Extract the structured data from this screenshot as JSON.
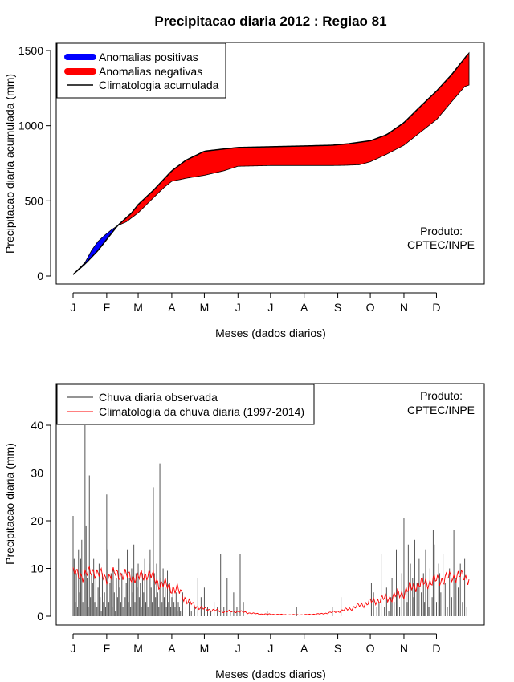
{
  "title": "Precipitacao diaria 2012 : Regiao 81",
  "product_line1": "Produto:",
  "product_line2": "CPTEC/INPE",
  "colors": {
    "positive": "#0000ff",
    "negative": "#ff0000",
    "climatology_accumulated": "#000000",
    "observed_bars": "#555555",
    "climatology_daily": "#ff0000"
  },
  "chart_data": [
    {
      "type": "area",
      "ylabel": "Precipitacao diaria acumulada (mm)",
      "xlabel": "Meses (dados diarios)",
      "xlim": [
        1,
        366
      ],
      "ylim": [
        0,
        1500
      ],
      "ytick_values": [
        0,
        500,
        1000,
        1500
      ],
      "ytick_labels": [
        "0",
        "500",
        "1000",
        "1500"
      ],
      "month_labels": [
        "J",
        "F",
        "M",
        "A",
        "M",
        "J",
        "J",
        "A",
        "S",
        "O",
        "N",
        "D"
      ],
      "month_days": [
        1,
        32,
        61,
        92,
        122,
        153,
        183,
        214,
        245,
        275,
        306,
        336
      ],
      "legend": [
        "Anomalias positivas",
        "Anomalias negativas",
        "Climatologia acumulada"
      ],
      "legend_position": "top-left",
      "series": [
        {
          "name": "Climatologia acumulada",
          "points": [
            [
              1,
              10
            ],
            [
              12,
              80
            ],
            [
              24,
              170
            ],
            [
              36,
              280
            ],
            [
              42,
              335
            ],
            [
              55,
              420
            ],
            [
              61,
              475
            ],
            [
              75,
              570
            ],
            [
              92,
              700
            ],
            [
              105,
              770
            ],
            [
              122,
              830
            ],
            [
              140,
              845
            ],
            [
              153,
              855
            ],
            [
              183,
              860
            ],
            [
              214,
              865
            ],
            [
              240,
              870
            ],
            [
              255,
              880
            ],
            [
              275,
              900
            ],
            [
              290,
              940
            ],
            [
              306,
              1020
            ],
            [
              320,
              1120
            ],
            [
              336,
              1230
            ],
            [
              350,
              1340
            ],
            [
              366,
              1485
            ]
          ]
        },
        {
          "name": "Observada acumulada",
          "points": [
            [
              1,
              10
            ],
            [
              12,
              90
            ],
            [
              18,
              170
            ],
            [
              24,
              230
            ],
            [
              30,
              270
            ],
            [
              36,
              305
            ],
            [
              42,
              335
            ],
            [
              50,
              360
            ],
            [
              61,
              420
            ],
            [
              75,
              520
            ],
            [
              85,
              590
            ],
            [
              92,
              630
            ],
            [
              105,
              650
            ],
            [
              122,
              670
            ],
            [
              140,
              700
            ],
            [
              153,
              730
            ],
            [
              183,
              735
            ],
            [
              214,
              735
            ],
            [
              240,
              735
            ],
            [
              250,
              736
            ],
            [
              265,
              740
            ],
            [
              275,
              760
            ],
            [
              290,
              810
            ],
            [
              306,
              870
            ],
            [
              320,
              950
            ],
            [
              336,
              1040
            ],
            [
              350,
              1160
            ],
            [
              362,
              1260
            ],
            [
              366,
              1270
            ]
          ]
        }
      ]
    },
    {
      "type": "bar",
      "ylabel": "Precipitacao diaria (mm)",
      "xlabel": "Meses (dados diarios)",
      "xlim": [
        1,
        366
      ],
      "ylim": [
        0,
        40
      ],
      "ytick_values": [
        0,
        10,
        20,
        30,
        40
      ],
      "ytick_labels": [
        "0",
        "10",
        "20",
        "30",
        "40"
      ],
      "month_labels": [
        "J",
        "F",
        "M",
        "A",
        "M",
        "J",
        "J",
        "A",
        "S",
        "O",
        "N",
        "D"
      ],
      "month_days": [
        1,
        32,
        61,
        92,
        122,
        153,
        183,
        214,
        245,
        275,
        306,
        336
      ],
      "legend": [
        "Chuva diaria observada",
        "Climatologia da chuva diaria (1997-2014)"
      ],
      "legend_position": "top-left",
      "series": [
        {
          "name": "Chuva diaria observada",
          "x": [
            1,
            2,
            3,
            4,
            5,
            6,
            7,
            8,
            9,
            10,
            11,
            12,
            13,
            14,
            15,
            16,
            17,
            18,
            19,
            20,
            21,
            22,
            23,
            24,
            25,
            26,
            27,
            28,
            29,
            30,
            31,
            32,
            33,
            34,
            35,
            36,
            37,
            38,
            39,
            40,
            41,
            42,
            43,
            44,
            45,
            46,
            47,
            48,
            49,
            50,
            51,
            52,
            53,
            54,
            55,
            56,
            57,
            58,
            59,
            60,
            61,
            62,
            63,
            64,
            65,
            66,
            67,
            68,
            69,
            70,
            71,
            72,
            73,
            74,
            75,
            76,
            77,
            78,
            79,
            80,
            81,
            82,
            83,
            84,
            85,
            86,
            87,
            88,
            89,
            90,
            91,
            92,
            93,
            94,
            95,
            96,
            97,
            98,
            99,
            100,
            102,
            105,
            108,
            110,
            113,
            116,
            119,
            122,
            125,
            128,
            131,
            134,
            137,
            140,
            143,
            146,
            149,
            152,
            155,
            158,
            180,
            207,
            240,
            248,
            276,
            278,
            281,
            283,
            285,
            288,
            290,
            292,
            294,
            295,
            297,
            299,
            300,
            302,
            304,
            306,
            308,
            309,
            310,
            312,
            314,
            315,
            316,
            318,
            319,
            320,
            322,
            324,
            325,
            326,
            328,
            329,
            330,
            332,
            333,
            334,
            336,
            338,
            339,
            340,
            342,
            344,
            346,
            348,
            350,
            352,
            354,
            356,
            358,
            360,
            362,
            364
          ],
          "values": [
            21,
            12,
            3,
            9,
            2,
            14,
            5,
            12,
            16,
            3,
            11,
            40,
            19,
            8,
            2,
            29.5,
            4,
            9,
            7,
            12,
            3,
            8,
            2,
            6,
            11,
            4,
            1,
            9,
            3,
            5,
            2,
            25.5,
            14,
            3,
            7,
            9,
            2,
            10,
            5,
            1,
            8,
            4,
            12,
            6,
            3,
            9,
            2,
            11,
            4,
            7,
            14,
            3,
            8,
            2,
            10,
            5,
            15,
            3,
            9,
            6,
            11,
            4,
            7,
            2,
            9,
            5,
            12,
            3,
            8,
            2,
            11,
            14,
            6,
            3,
            27,
            9,
            4,
            11,
            5,
            2,
            32,
            8,
            3,
            10,
            4,
            6,
            2,
            9.5,
            3,
            7,
            2,
            4,
            6,
            3,
            2,
            5,
            1,
            3,
            2,
            1,
            5,
            2,
            3,
            1,
            2,
            8,
            4,
            6,
            2,
            1,
            3,
            2,
            13,
            2,
            8,
            1,
            5,
            2,
            13,
            3,
            1,
            2,
            2,
            4,
            7,
            5,
            2,
            3,
            13,
            2,
            6,
            1,
            4,
            8,
            3,
            14,
            5,
            2,
            9,
            20.5,
            6,
            3,
            15,
            11,
            8,
            4,
            16,
            7,
            2,
            12,
            5,
            9,
            3,
            14,
            6,
            2,
            10,
            4,
            18,
            15,
            3,
            11,
            9,
            5,
            13,
            7,
            2,
            10,
            4,
            18,
            8,
            6,
            11,
            3,
            12,
            2
          ],
          "visible_text_note": ""
        },
        {
          "name": "Climatologia da chuva diaria (1997-2014)",
          "points": [
            [
              1,
              9
            ],
            [
              10,
              8.5
            ],
            [
              20,
              9.5
            ],
            [
              31,
              8
            ],
            [
              40,
              9
            ],
            [
              50,
              8.5
            ],
            [
              61,
              8
            ],
            [
              70,
              9
            ],
            [
              80,
              7
            ],
            [
              92,
              6
            ],
            [
              100,
              5
            ],
            [
              107,
              3
            ],
            [
              115,
              2
            ],
            [
              122,
              1.5
            ],
            [
              140,
              1
            ],
            [
              153,
              1
            ],
            [
              170,
              0.5
            ],
            [
              183,
              0.4
            ],
            [
              200,
              0.3
            ],
            [
              214,
              0.3
            ],
            [
              230,
              0.5
            ],
            [
              245,
              1
            ],
            [
              255,
              1.5
            ],
            [
              265,
              2.2
            ],
            [
              275,
              3
            ],
            [
              285,
              3.5
            ],
            [
              295,
              4
            ],
            [
              306,
              5
            ],
            [
              316,
              6.5
            ],
            [
              326,
              7
            ],
            [
              336,
              7.5
            ],
            [
              346,
              8
            ],
            [
              356,
              8.5
            ],
            [
              366,
              8
            ]
          ]
        }
      ]
    }
  ]
}
